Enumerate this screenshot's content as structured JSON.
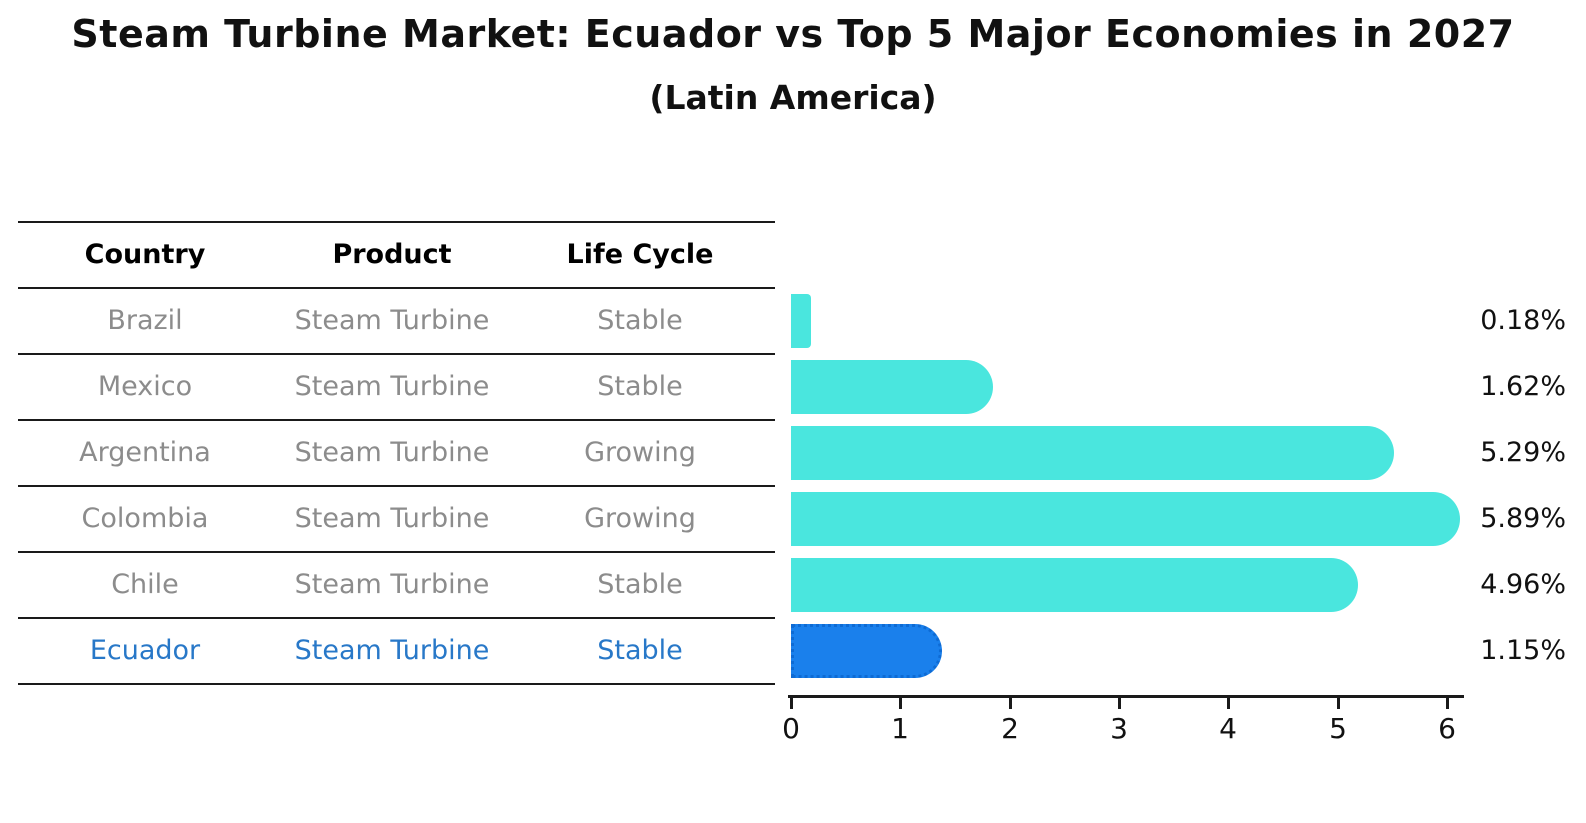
{
  "title": "Steam Turbine Market: Ecuador vs Top 5 Major Economies in 2027",
  "subtitle": "(Latin America)",
  "table": {
    "headers": [
      "Country",
      "Product",
      "Life Cycle"
    ],
    "rows": [
      {
        "country": "Brazil",
        "product": "Steam Turbine",
        "life_cycle": "Stable",
        "share": "0.18%",
        "highlight": false
      },
      {
        "country": "Mexico",
        "product": "Steam Turbine",
        "life_cycle": "Stable",
        "share": "1.62%",
        "highlight": false
      },
      {
        "country": "Argentina",
        "product": "Steam Turbine",
        "life_cycle": "Growing",
        "share": "5.29%",
        "highlight": false
      },
      {
        "country": "Colombia",
        "product": "Steam Turbine",
        "life_cycle": "Growing",
        "share": "5.89%",
        "highlight": false
      },
      {
        "country": "Chile",
        "product": "Steam Turbine",
        "life_cycle": "Stable",
        "share": "4.96%",
        "highlight": false
      },
      {
        "country": "Ecuador",
        "product": "Steam Turbine",
        "life_cycle": "Stable",
        "share": "1.15%",
        "highlight": true
      }
    ]
  },
  "axis": {
    "ticks": [
      "0",
      "1",
      "2",
      "3",
      "4",
      "5",
      "6"
    ]
  },
  "colors": {
    "bar": "#4AE6DE",
    "highlight_bar": "#1A80EC",
    "highlight_border": "#0E6BD4",
    "highlight_text": "#2878C8",
    "row_text": "#8C8C8C",
    "line": "#1A1A1A"
  },
  "chart_data": {
    "type": "bar",
    "orientation": "horizontal",
    "title": "Steam Turbine Market: Ecuador vs Top 5 Major Economies in 2027",
    "subtitle": "(Latin America)",
    "categories": [
      "Brazil",
      "Mexico",
      "Argentina",
      "Colombia",
      "Chile",
      "Ecuador"
    ],
    "values": [
      0.18,
      1.62,
      5.29,
      5.89,
      4.96,
      1.15
    ],
    "value_labels": [
      "0.18%",
      "1.62%",
      "5.29%",
      "5.89%",
      "4.96%",
      "1.15%"
    ],
    "xlabel": "",
    "ylabel": "",
    "xlim": [
      0,
      6
    ],
    "x_ticks": [
      0,
      1,
      2,
      3,
      4,
      5,
      6
    ],
    "grid": false,
    "legend": "none",
    "highlight_category": "Ecuador",
    "table_columns": [
      "Country",
      "Product",
      "Life Cycle"
    ],
    "table_rows": [
      [
        "Brazil",
        "Steam Turbine",
        "Stable"
      ],
      [
        "Mexico",
        "Steam Turbine",
        "Stable"
      ],
      [
        "Argentina",
        "Steam Turbine",
        "Growing"
      ],
      [
        "Colombia",
        "Steam Turbine",
        "Growing"
      ],
      [
        "Chile",
        "Steam Turbine",
        "Stable"
      ],
      [
        "Ecuador",
        "Steam Turbine",
        "Stable"
      ]
    ]
  }
}
